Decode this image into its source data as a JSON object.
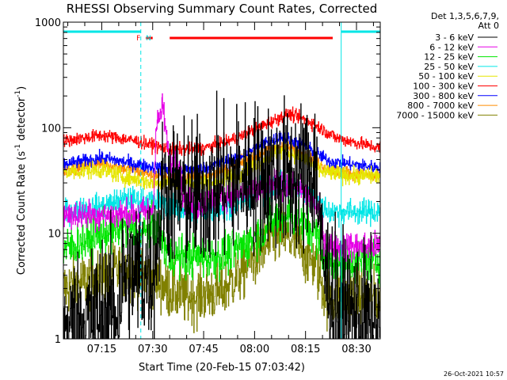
{
  "chart_data": {
    "type": "line",
    "title": "RHESSI Observing Summary Count Rates, Corrected",
    "xlabel": "Start Time (20-Feb-15 07:03:42)",
    "ylabel_parts": [
      "Corrected Count Rate (s",
      "-1",
      " detector",
      "-1",
      ")"
    ],
    "yscale": "log",
    "ylim": [
      1,
      1000
    ],
    "xlim_min": [
      3.7,
      97.0
    ],
    "yticks": [
      {
        "value": 1,
        "label": "1"
      },
      {
        "value": 10,
        "label": "10"
      },
      {
        "value": 100,
        "label": "100"
      },
      {
        "value": 1000,
        "label": "1000"
      }
    ],
    "xticks": [
      {
        "min": 15,
        "label": "07:15"
      },
      {
        "min": 30,
        "label": "07:30"
      },
      {
        "min": 45,
        "label": "07:45"
      },
      {
        "min": 60,
        "label": "08:00"
      },
      {
        "min": 75,
        "label": "08:15"
      },
      {
        "min": 90,
        "label": "08:30"
      }
    ],
    "legend_position": "right",
    "legend_header": [
      "Det 1,3,5,6,7,9,",
      "Att 0"
    ],
    "series": [
      {
        "name": "3 - 6 keV",
        "color": "#000000",
        "base": [
          [
            4,
            1.2
          ],
          [
            20,
            2
          ],
          [
            21,
            4
          ],
          [
            30,
            4.5
          ],
          [
            33,
            25
          ],
          [
            40,
            22
          ],
          [
            48,
            26
          ],
          [
            52,
            30
          ],
          [
            60,
            36
          ],
          [
            70,
            33
          ],
          [
            75,
            36
          ],
          [
            78,
            42
          ],
          [
            80,
            5
          ],
          [
            84,
            2
          ],
          [
            96,
            1.3
          ]
        ],
        "noise": 0.35
      },
      {
        "name": "6 - 12 keV",
        "color": "#e600e6",
        "base": [
          [
            4,
            15
          ],
          [
            14,
            15
          ],
          [
            20,
            15
          ],
          [
            28,
            16
          ],
          [
            30,
            17
          ],
          [
            31,
            100
          ],
          [
            33,
            160
          ],
          [
            35,
            40
          ],
          [
            37,
            60
          ],
          [
            39,
            22
          ],
          [
            42,
            18
          ],
          [
            50,
            22
          ],
          [
            60,
            25
          ],
          [
            68,
            30
          ],
          [
            72,
            28
          ],
          [
            76,
            22
          ],
          [
            79,
            16
          ],
          [
            81,
            7.5
          ],
          [
            96,
            7.5
          ]
        ],
        "noise": 0.07
      },
      {
        "name": "12 - 25 keV",
        "color": "#00e600",
        "base": [
          [
            4,
            7
          ],
          [
            15,
            10
          ],
          [
            22,
            11
          ],
          [
            28,
            10
          ],
          [
            31,
            12
          ],
          [
            35,
            6
          ],
          [
            50,
            6
          ],
          [
            58,
            8
          ],
          [
            64,
            12
          ],
          [
            70,
            15
          ],
          [
            74,
            13
          ],
          [
            78,
            10
          ],
          [
            81,
            5.5
          ],
          [
            96,
            5.5
          ]
        ],
        "noise": 0.1
      },
      {
        "name": "25 - 50 keV",
        "color": "#00e6e6",
        "base": [
          [
            4,
            16
          ],
          [
            15,
            18
          ],
          [
            22,
            21
          ],
          [
            30,
            20
          ],
          [
            40,
            16
          ],
          [
            50,
            17
          ],
          [
            60,
            24
          ],
          [
            68,
            30
          ],
          [
            72,
            28
          ],
          [
            78,
            20
          ],
          [
            82,
            16
          ],
          [
            96,
            16
          ]
        ],
        "noise": 0.06
      },
      {
        "name": "50 - 100 keV",
        "color": "#e6e600",
        "base": [
          [
            4,
            38
          ],
          [
            15,
            40
          ],
          [
            22,
            34
          ],
          [
            30,
            30
          ],
          [
            40,
            30
          ],
          [
            50,
            31
          ],
          [
            58,
            40
          ],
          [
            65,
            55
          ],
          [
            69,
            62
          ],
          [
            74,
            52
          ],
          [
            80,
            38
          ],
          [
            88,
            35
          ],
          [
            96,
            35
          ]
        ],
        "noise": 0.04
      },
      {
        "name": "100 - 300 keV",
        "color": "#ff0000",
        "base": [
          [
            4,
            75
          ],
          [
            15,
            85
          ],
          [
            25,
            75
          ],
          [
            35,
            62
          ],
          [
            45,
            64
          ],
          [
            55,
            80
          ],
          [
            65,
            115
          ],
          [
            70,
            135
          ],
          [
            76,
            115
          ],
          [
            84,
            80
          ],
          [
            96,
            65
          ]
        ],
        "noise": 0.03
      },
      {
        "name": "300 - 800 keV",
        "color": "#0000ff",
        "base": [
          [
            4,
            45
          ],
          [
            15,
            52
          ],
          [
            25,
            45
          ],
          [
            35,
            40
          ],
          [
            45,
            41
          ],
          [
            55,
            52
          ],
          [
            63,
            72
          ],
          [
            68,
            82
          ],
          [
            74,
            70
          ],
          [
            82,
            48
          ],
          [
            96,
            42
          ]
        ],
        "noise": 0.03
      },
      {
        "name": "800 - 7000 keV",
        "color": "#ff8c00",
        "base": [
          [
            4,
            40
          ],
          [
            15,
            46
          ],
          [
            25,
            39
          ],
          [
            35,
            33
          ],
          [
            45,
            34
          ],
          [
            55,
            44
          ],
          [
            63,
            60
          ],
          [
            68,
            68
          ],
          [
            74,
            57
          ],
          [
            82,
            40
          ],
          [
            96,
            34
          ]
        ],
        "noise": 0.03
      },
      {
        "name": "7000 - 15000 keV",
        "color": "#808000",
        "base": [
          [
            4,
            3
          ],
          [
            15,
            4
          ],
          [
            22,
            4.5
          ],
          [
            30,
            4
          ],
          [
            34,
            3
          ],
          [
            40,
            2.5
          ],
          [
            50,
            2.8
          ],
          [
            58,
            5
          ],
          [
            64,
            8
          ],
          [
            68,
            10
          ],
          [
            72,
            8
          ],
          [
            78,
            5
          ],
          [
            81,
            2.5
          ],
          [
            96,
            2.5
          ]
        ],
        "noise": 0.14
      }
    ],
    "markers": {
      "night_cyan_top": [
        [
          3.7,
          26.5
        ],
        [
          85.5,
          97.0
        ]
      ],
      "vertical_dashed_min": [
        26.5,
        97.0
      ],
      "vertical_solid_min": [
        85.5
      ],
      "flare_red_top": [
        [
          28.0,
          30.0
        ],
        [
          35.0,
          83.0
        ]
      ],
      "flag_labels": [
        {
          "text": "F",
          "color": "#ff0000",
          "min": 25.2
        },
        {
          "text": "N",
          "color": "#00e6e6",
          "min": 28.0
        }
      ]
    }
  },
  "footer_date": "26-Oct-2021 10:57"
}
